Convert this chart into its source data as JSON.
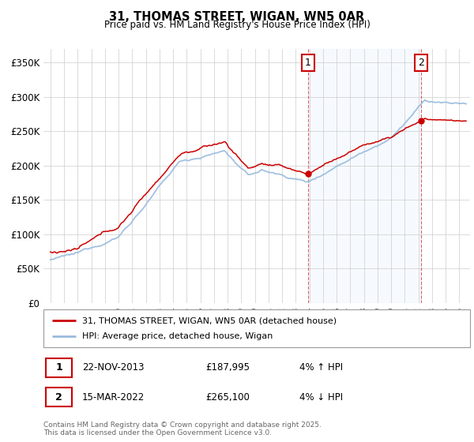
{
  "title": "31, THOMAS STREET, WIGAN, WN5 0AR",
  "subtitle": "Price paid vs. HM Land Registry's House Price Index (HPI)",
  "ylim": [
    0,
    370000
  ],
  "yticks": [
    0,
    50000,
    100000,
    150000,
    200000,
    250000,
    300000,
    350000
  ],
  "ytick_labels": [
    "£0",
    "£50K",
    "£100K",
    "£150K",
    "£200K",
    "£250K",
    "£300K",
    "£350K"
  ],
  "legend_line1": "31, THOMAS STREET, WIGAN, WN5 0AR (detached house)",
  "legend_line2": "HPI: Average price, detached house, Wigan",
  "annotation1_label": "1",
  "annotation1_date": "22-NOV-2013",
  "annotation1_price": "£187,995",
  "annotation1_hpi": "4% ↑ HPI",
  "annotation2_label": "2",
  "annotation2_date": "15-MAR-2022",
  "annotation2_price": "£265,100",
  "annotation2_hpi": "4% ↓ HPI",
  "footer": "Contains HM Land Registry data © Crown copyright and database right 2025.\nThis data is licensed under the Open Government Licence v3.0.",
  "red_color": "#cc0000",
  "blue_color": "#99bbdd",
  "shade_color": "#ddeeff",
  "anno_x1": 2013.9,
  "anno_x2": 2022.2,
  "anno_y1": 187995,
  "anno_y2": 265100,
  "xmin": 1994.5,
  "xmax": 2025.8
}
